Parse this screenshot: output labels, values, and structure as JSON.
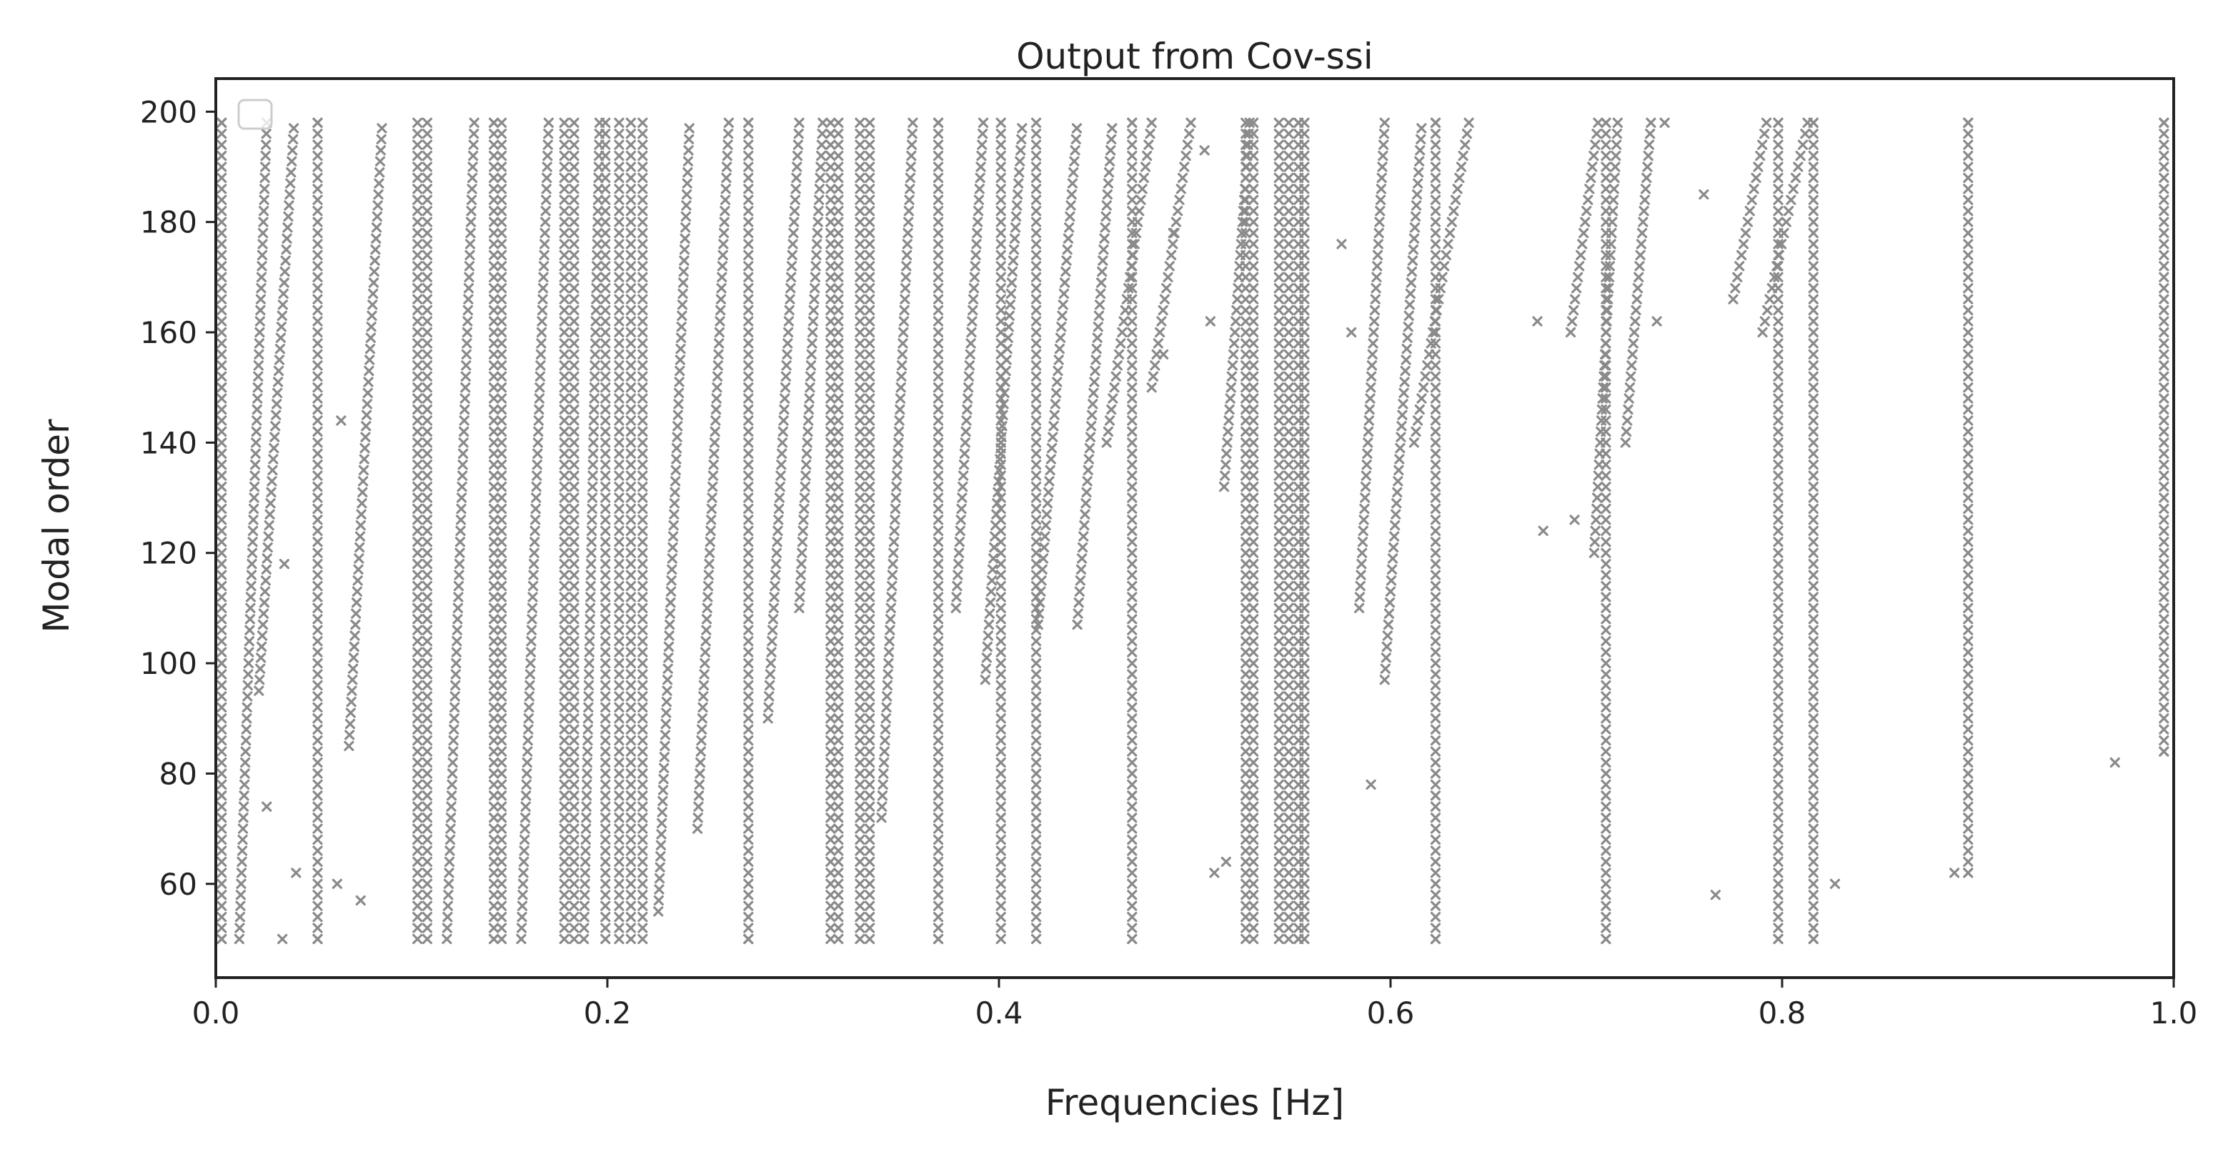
{
  "chart_data": {
    "type": "scatter",
    "title": "Output from Cov-ssi",
    "xlabel": "Frequencies [Hz]",
    "ylabel": "Modal order",
    "xlim": [
      0.0,
      1.0
    ],
    "ylim": [
      43,
      206
    ],
    "xticks": [
      "0.0",
      "0.2",
      "0.4",
      "0.6",
      "0.8",
      "1.0"
    ],
    "yticks": [
      "60",
      "80",
      "100",
      "120",
      "140",
      "160",
      "180",
      "200"
    ],
    "grid": false,
    "legend": "top-left (empty)",
    "marker": "x",
    "colors": {
      "points": "#8a8a8a",
      "light_points": "#b8b8b8",
      "axes": "#222222"
    },
    "stable_columns_hz": [
      0.003,
      0.052,
      0.103,
      0.108,
      0.142,
      0.146,
      0.178,
      0.183,
      0.199,
      0.206,
      0.212,
      0.218,
      0.272,
      0.314,
      0.318,
      0.329,
      0.334,
      0.369,
      0.401,
      0.419,
      0.468,
      0.526,
      0.53,
      0.543,
      0.548,
      0.553,
      0.556,
      0.623,
      0.71,
      0.798,
      0.816,
      0.895,
      0.995
    ],
    "column_order_range": [
      50,
      198
    ],
    "points": [
      {
        "x": 0.003,
        "y": 50
      },
      {
        "x": 0.003,
        "y": 100
      },
      {
        "x": 0.003,
        "y": 150
      },
      {
        "x": 0.003,
        "y": 198
      },
      {
        "x": 0.052,
        "y": 50
      },
      {
        "x": 0.052,
        "y": 198
      },
      {
        "x": 0.142,
        "y": 50
      },
      {
        "x": 0.142,
        "y": 198
      },
      {
        "x": 0.272,
        "y": 50
      },
      {
        "x": 0.272,
        "y": 198
      },
      {
        "x": 0.369,
        "y": 50
      },
      {
        "x": 0.369,
        "y": 198
      },
      {
        "x": 0.468,
        "y": 50
      },
      {
        "x": 0.468,
        "y": 198
      },
      {
        "x": 0.553,
        "y": 50
      },
      {
        "x": 0.553,
        "y": 198
      },
      {
        "x": 0.623,
        "y": 50
      },
      {
        "x": 0.623,
        "y": 198
      },
      {
        "x": 0.71,
        "y": 50
      },
      {
        "x": 0.71,
        "y": 198
      },
      {
        "x": 0.798,
        "y": 50
      },
      {
        "x": 0.798,
        "y": 198
      },
      {
        "x": 0.816,
        "y": 50
      },
      {
        "x": 0.816,
        "y": 198
      },
      {
        "x": 0.895,
        "y": 62
      },
      {
        "x": 0.895,
        "y": 198
      },
      {
        "x": 0.995,
        "y": 84
      },
      {
        "x": 0.995,
        "y": 198
      },
      {
        "x": 0.97,
        "y": 82
      },
      {
        "x": 0.888,
        "y": 62
      },
      {
        "x": 0.827,
        "y": 60
      },
      {
        "x": 0.766,
        "y": 58
      },
      {
        "x": 0.675,
        "y": 162
      },
      {
        "x": 0.678,
        "y": 124
      },
      {
        "x": 0.694,
        "y": 126
      },
      {
        "x": 0.736,
        "y": 162
      },
      {
        "x": 0.76,
        "y": 185
      },
      {
        "x": 0.74,
        "y": 198
      },
      {
        "x": 0.575,
        "y": 176
      },
      {
        "x": 0.59,
        "y": 78
      },
      {
        "x": 0.58,
        "y": 160
      },
      {
        "x": 0.51,
        "y": 62
      },
      {
        "x": 0.516,
        "y": 64
      },
      {
        "x": 0.508,
        "y": 162
      },
      {
        "x": 0.484,
        "y": 156
      },
      {
        "x": 0.489,
        "y": 178
      },
      {
        "x": 0.505,
        "y": 193
      },
      {
        "x": 0.034,
        "y": 50
      },
      {
        "x": 0.041,
        "y": 62
      },
      {
        "x": 0.035,
        "y": 118
      },
      {
        "x": 0.026,
        "y": 74
      },
      {
        "x": 0.062,
        "y": 60
      },
      {
        "x": 0.074,
        "y": 57
      },
      {
        "x": 0.064,
        "y": 144
      }
    ],
    "drift_tracks": [
      {
        "x_start": 0.012,
        "x_end": 0.026,
        "y_start": 50,
        "y_end": 198
      },
      {
        "x_start": 0.022,
        "x_end": 0.04,
        "y_start": 95,
        "y_end": 198
      },
      {
        "x_start": 0.068,
        "x_end": 0.085,
        "y_start": 85,
        "y_end": 198
      },
      {
        "x_start": 0.118,
        "x_end": 0.132,
        "y_start": 50,
        "y_end": 198
      },
      {
        "x_start": 0.156,
        "x_end": 0.17,
        "y_start": 50,
        "y_end": 198
      },
      {
        "x_start": 0.188,
        "x_end": 0.196,
        "y_start": 50,
        "y_end": 198
      },
      {
        "x_start": 0.226,
        "x_end": 0.242,
        "y_start": 55,
        "y_end": 198
      },
      {
        "x_start": 0.246,
        "x_end": 0.262,
        "y_start": 70,
        "y_end": 198
      },
      {
        "x_start": 0.282,
        "x_end": 0.298,
        "y_start": 90,
        "y_end": 198
      },
      {
        "x_start": 0.298,
        "x_end": 0.31,
        "y_start": 110,
        "y_end": 198
      },
      {
        "x_start": 0.34,
        "x_end": 0.356,
        "y_start": 72,
        "y_end": 198
      },
      {
        "x_start": 0.378,
        "x_end": 0.392,
        "y_start": 110,
        "y_end": 198
      },
      {
        "x_start": 0.393,
        "x_end": 0.412,
        "y_start": 97,
        "y_end": 198
      },
      {
        "x_start": 0.42,
        "x_end": 0.44,
        "y_start": 107,
        "y_end": 198
      },
      {
        "x_start": 0.44,
        "x_end": 0.458,
        "y_start": 107,
        "y_end": 198
      },
      {
        "x_start": 0.455,
        "x_end": 0.478,
        "y_start": 140,
        "y_end": 198
      },
      {
        "x_start": 0.478,
        "x_end": 0.498,
        "y_start": 150,
        "y_end": 198
      },
      {
        "x_start": 0.515,
        "x_end": 0.528,
        "y_start": 132,
        "y_end": 198
      },
      {
        "x_start": 0.584,
        "x_end": 0.597,
        "y_start": 110,
        "y_end": 198
      },
      {
        "x_start": 0.597,
        "x_end": 0.616,
        "y_start": 97,
        "y_end": 198
      },
      {
        "x_start": 0.612,
        "x_end": 0.64,
        "y_start": 140,
        "y_end": 198
      },
      {
        "x_start": 0.692,
        "x_end": 0.706,
        "y_start": 160,
        "y_end": 198
      },
      {
        "x_start": 0.704,
        "x_end": 0.716,
        "y_start": 120,
        "y_end": 198
      },
      {
        "x_start": 0.72,
        "x_end": 0.733,
        "y_start": 140,
        "y_end": 198
      },
      {
        "x_start": 0.775,
        "x_end": 0.792,
        "y_start": 166,
        "y_end": 198
      },
      {
        "x_start": 0.79,
        "x_end": 0.813,
        "y_start": 160,
        "y_end": 198
      }
    ],
    "track_step": 2
  }
}
